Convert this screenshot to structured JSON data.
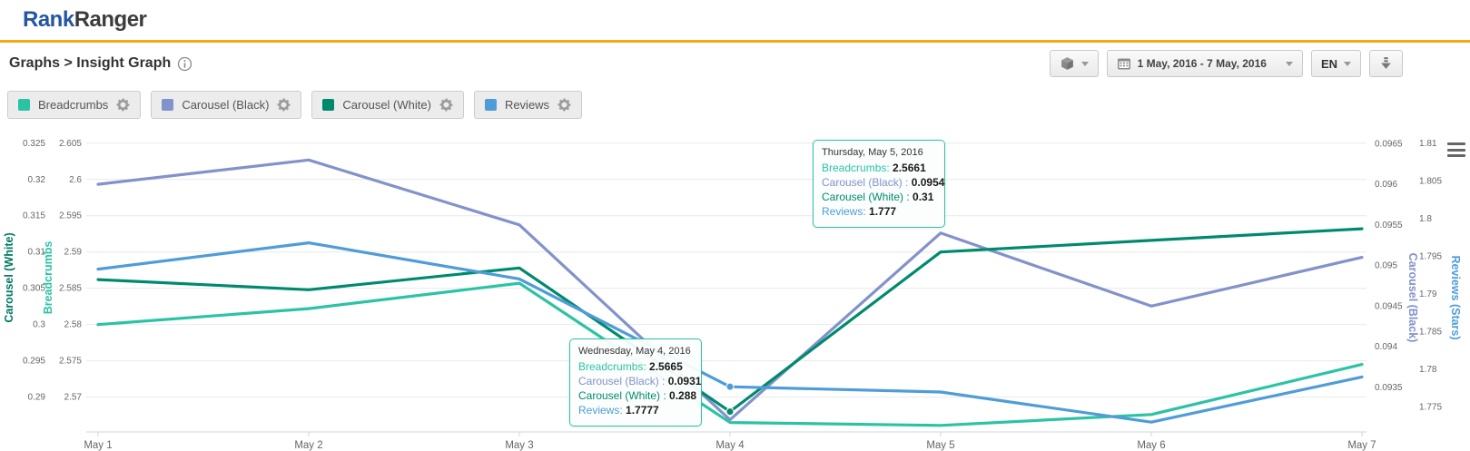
{
  "header": {
    "logo_primary": "Rank",
    "logo_secondary": "Ranger"
  },
  "toolbar": {
    "breadcrumb": "Graphs > Insight Graph",
    "date_range": "1 May, 2016 - 7 May, 2016",
    "language": "EN",
    "icons": [
      "package-icon",
      "calendar-icon",
      "download-icon",
      "info-icon",
      "chart-context-menu-icon",
      "gear-icon"
    ]
  },
  "legend_chips": [
    {
      "label": "Breadcrumbs",
      "color": "#2cc3a4"
    },
    {
      "label": "Carousel (Black)",
      "color": "#8292ca"
    },
    {
      "label": "Carousel (White)",
      "color": "#008a6d"
    },
    {
      "label": "Reviews",
      "color": "#4f9cd8"
    }
  ],
  "chart_data": {
    "type": "line",
    "categories": [
      "May 1",
      "May 2",
      "May 3",
      "May 4",
      "May 5",
      "May 6",
      "May 7"
    ],
    "series": [
      {
        "name": "Breadcrumbs",
        "axis": "breadcrumbs",
        "color": "#2cc3a4",
        "values": [
          2.58,
          2.5822,
          2.5857,
          2.5665,
          2.5661,
          2.5676,
          2.5745
        ]
      },
      {
        "name": "Carousel (Black)",
        "axis": "carousel_black",
        "color": "#8292ca",
        "values": [
          0.096,
          0.0963,
          0.0955,
          0.0931,
          0.0954,
          0.0945,
          0.0951
        ]
      },
      {
        "name": "Carousel (White)",
        "axis": "carousel_white",
        "color": "#008a6d",
        "values": [
          0.3062,
          0.3048,
          0.3078,
          0.288,
          0.31,
          0.3116,
          0.3132
        ]
      },
      {
        "name": "Reviews",
        "axis": "reviews",
        "color": "#4f9cd8",
        "values": [
          1.7933,
          1.7968,
          1.792,
          1.7777,
          1.777,
          1.773,
          1.779
        ]
      }
    ],
    "axes": [
      {
        "id": "carousel_white",
        "title": "Carousel (White)",
        "side": "left",
        "color": "#007a60",
        "ticks": [
          "0.325",
          "0.32",
          "0.315",
          "0.31",
          "0.305",
          "0.3",
          "0.295",
          "0.29"
        ],
        "top_value": 0.3256,
        "bottom_value": 0.2852
      },
      {
        "id": "breadcrumbs",
        "title": "Breadcrumbs",
        "side": "left",
        "color": "#2cc3a4",
        "ticks": [
          "2.605",
          "2.6",
          "2.595",
          "2.59",
          "2.585",
          "2.58",
          "2.575",
          "2.57"
        ],
        "top_value": 2.6056,
        "bottom_value": 2.5652
      },
      {
        "id": "carousel_black",
        "title": "Carousel (Black)",
        "side": "right",
        "color": "#8292ca",
        "ticks": [
          "0.0965",
          "0.096",
          "0.0955",
          "0.095",
          "0.0945",
          "0.094",
          "0.0935"
        ],
        "top_value": 0.09656,
        "bottom_value": 0.09295
      },
      {
        "id": "reviews",
        "title": "Reviews (Stars)",
        "side": "right",
        "color": "#4f9cd8",
        "ticks": [
          "1.81",
          "1.805",
          "1.8",
          "1.795",
          "1.79",
          "1.785",
          "1.78",
          "1.775"
        ],
        "top_value": 1.8106,
        "bottom_value": 1.7717
      }
    ],
    "grid": {
      "on": true,
      "axis": "breadcrumbs"
    },
    "hover_markers": [
      {
        "series": "Reviews",
        "index": 3
      },
      {
        "series": "Carousel (White)",
        "index": 3
      }
    ],
    "tooltips": [
      {
        "id": "may5",
        "title": "Thursday, May 5, 2016",
        "rows": [
          {
            "label": "Breadcrumbs:",
            "value": "2.5661",
            "color": "#2cc3a4"
          },
          {
            "label": "Carousel (Black) :",
            "value": "0.0954",
            "color": "#8292ca"
          },
          {
            "label": "Carousel (White) :",
            "value": "0.31",
            "color": "#008a6d"
          },
          {
            "label": "Reviews:",
            "value": "1.777",
            "color": "#4f9cd8"
          }
        ]
      },
      {
        "id": "may4",
        "title": "Wednesday, May 4, 2016",
        "rows": [
          {
            "label": "Breadcrumbs:",
            "value": "2.5665",
            "color": "#2cc3a4"
          },
          {
            "label": "Carousel (Black) :",
            "value": "0.0931",
            "color": "#8292ca"
          },
          {
            "label": "Carousel (White) :",
            "value": "0.288",
            "color": "#008a6d"
          },
          {
            "label": "Reviews:",
            "value": "1.7777",
            "color": "#4f9cd8"
          }
        ]
      }
    ]
  }
}
